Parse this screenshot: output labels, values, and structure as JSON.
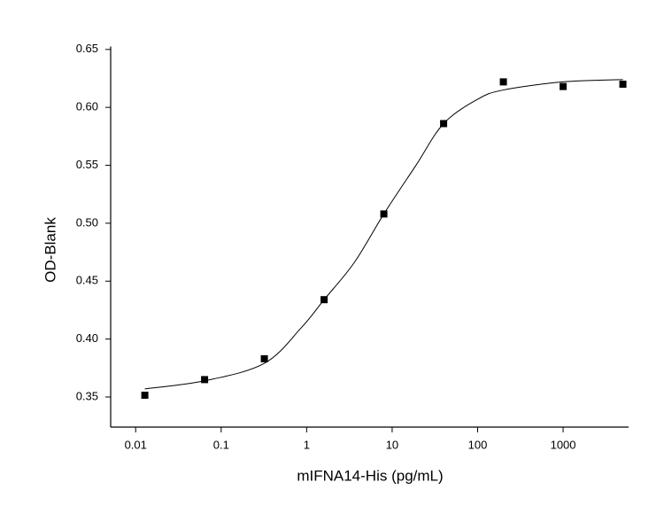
{
  "chart_data": {
    "type": "scatter",
    "x_label": "mIFNA14-His (pg/mL)",
    "y_label": "OD-Blank",
    "x_scale": "log",
    "xlim": [
      0.0051,
      5830
    ],
    "ylim": [
      0.324,
      0.651
    ],
    "xticks": [
      0.01,
      0.1,
      1,
      10,
      100,
      1000
    ],
    "yticks": [
      0.35,
      {
        "value": 0.4,
        "label": "0.40"
      },
      0.45,
      {
        "value": 0.5,
        "label": "0.50"
      },
      0.55,
      {
        "value": 0.6,
        "label": "0.60"
      },
      0.65
    ],
    "series": [
      {
        "type": "scatter",
        "color": "#000000",
        "x": [
          0.0128,
          0.064,
          0.32,
          1.6,
          8,
          40,
          200,
          1000,
          5000
        ],
        "values": [
          0.3515,
          0.365,
          0.383,
          0.434,
          0.508,
          0.586,
          0.622,
          0.618,
          0.62
        ]
      },
      {
        "type": "line",
        "color": "#000000",
        "x": [
          0.0128,
          0.064,
          0.32,
          0.87,
          1.6,
          3.6,
          8,
          19,
          40,
          100,
          200,
          1000,
          5000
        ],
        "values": [
          0.357,
          0.364,
          0.379,
          0.41,
          0.434,
          0.466,
          0.508,
          0.55,
          0.586,
          0.607,
          0.615,
          0.622,
          0.624
        ]
      }
    ]
  }
}
